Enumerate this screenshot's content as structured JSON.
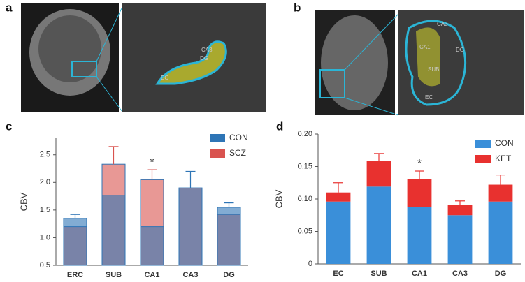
{
  "figure": {
    "panel_labels": [
      "a",
      "b",
      "c",
      "d"
    ],
    "image_a_labels": [
      "CA3",
      "DG",
      "EC"
    ],
    "image_b_labels": [
      "CA3",
      "DG",
      "CA1",
      "SUB",
      "EC"
    ]
  },
  "chart_data": [
    {
      "type": "bar",
      "stacked": false,
      "y_label": "CBV",
      "annotation": "*",
      "annotation_category": 2,
      "categories": [
        "ERC",
        "SUB",
        "CA1",
        "CA3",
        "DG"
      ],
      "series": [
        {
          "name": "CON",
          "color": "#2e75b6",
          "values": [
            1.35,
            1.77,
            1.2,
            1.9,
            1.55
          ],
          "errors": [
            0.07,
            null,
            null,
            0.3,
            0.08
          ]
        },
        {
          "name": "SCZ",
          "color": "#d9534f",
          "values": [
            1.2,
            2.33,
            2.05,
            1.9,
            1.42
          ],
          "errors": [
            null,
            0.32,
            0.18,
            null,
            null
          ]
        }
      ],
      "ylim": [
        0.5,
        2.8
      ],
      "yticks": [
        0.5,
        {
          "value": 1.0,
          "label": "1.0"
        },
        1.5,
        {
          "value": 2.0,
          "label": "2.0"
        },
        2.5
      ]
    },
    {
      "type": "bar",
      "stacked": true,
      "y_label": "CBV",
      "annotation": "*",
      "annotation_category": 2,
      "categories": [
        "EC",
        "SUB",
        "CA1",
        "CA3",
        "DG"
      ],
      "series": [
        {
          "name": "CON",
          "color": "#3a8fd9",
          "values": [
            0.096,
            0.119,
            0.088,
            0.075,
            0.096
          ]
        },
        {
          "name": "KET",
          "color": "#e8312f",
          "values": [
            0.014,
            0.04,
            0.043,
            0.016,
            0.026
          ],
          "errors": [
            0.015,
            0.011,
            0.012,
            0.006,
            0.015
          ]
        }
      ],
      "ylim": [
        0,
        0.2
      ],
      "yticks": [
        0,
        0.05,
        {
          "value": 0.1,
          "label": "0.10"
        },
        0.15,
        {
          "value": 0.2,
          "label": "0.20"
        }
      ]
    }
  ]
}
